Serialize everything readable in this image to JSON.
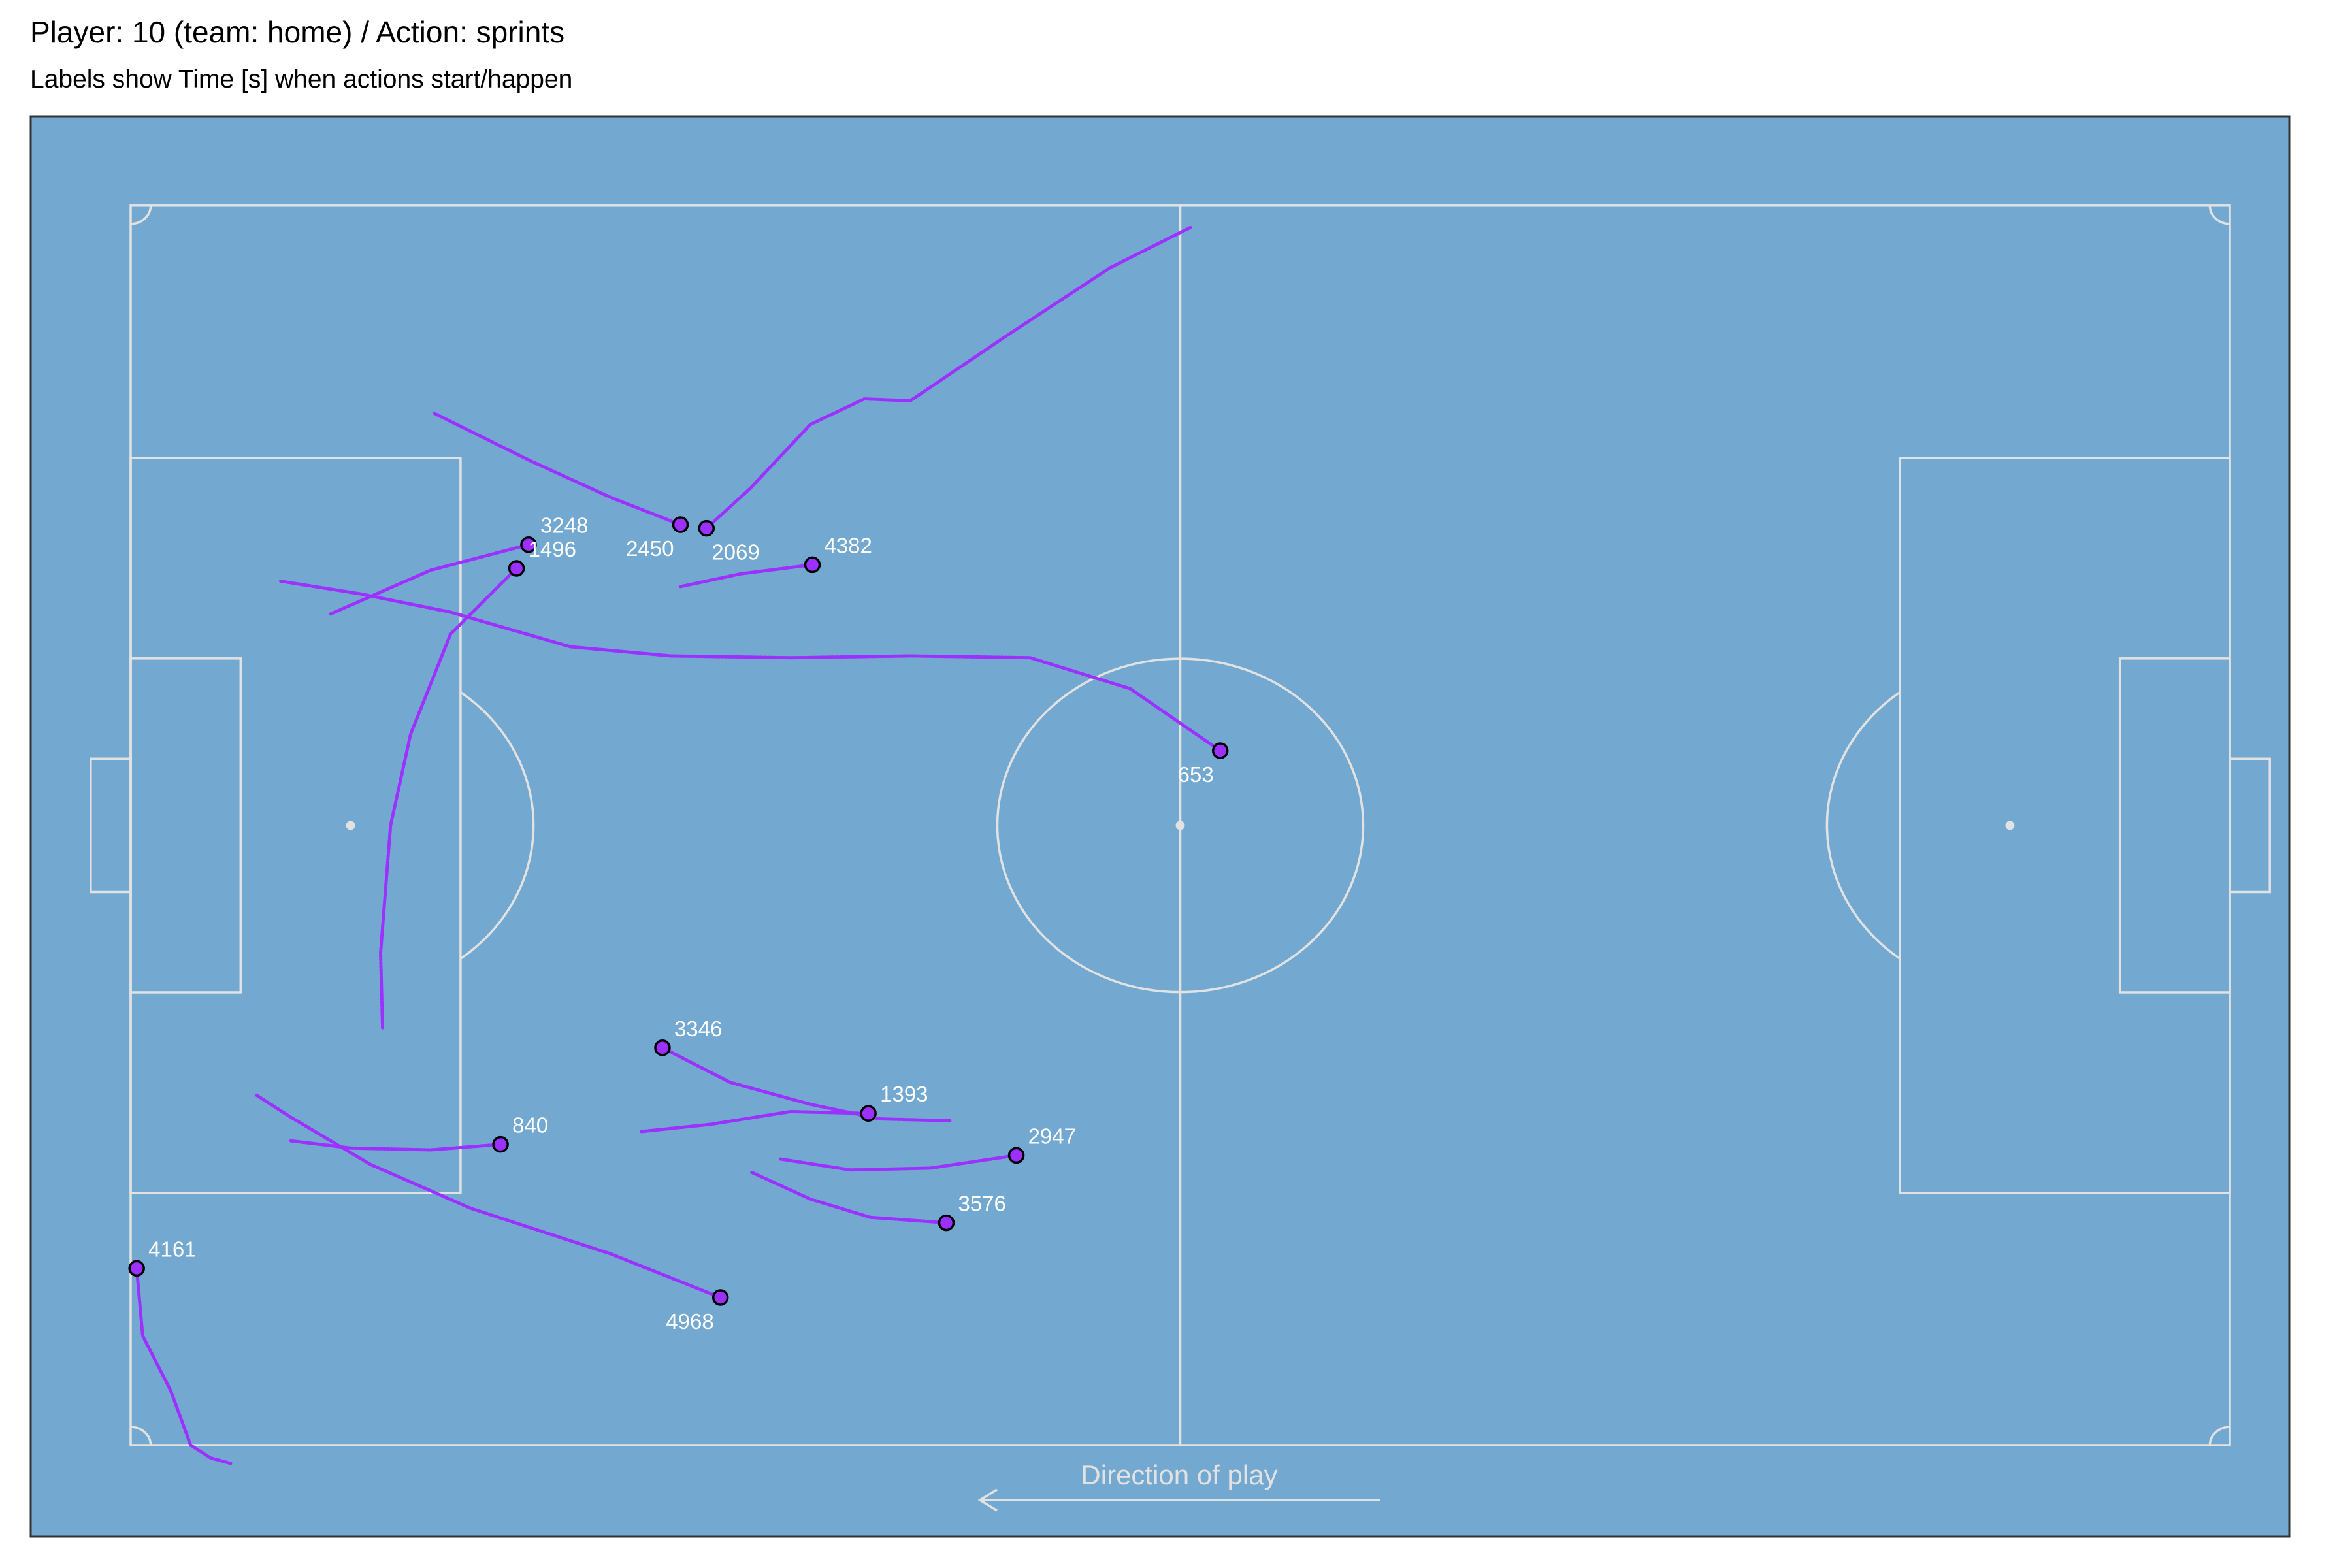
{
  "title": "Player: 10 (team: home) / Action: sprints",
  "subtitle": "Labels show Time [s] when actions start/happen",
  "direction_label": "Direction of play",
  "colors": {
    "panel_background": "#73a9d0",
    "pitch_lines": "#e2e2e2",
    "sprint_path": "#9b30ff",
    "start_point_fill": "#9b30ff",
    "start_point_outline": "#000000",
    "label_text": "#ffffff"
  },
  "chart_data": {
    "type": "scatter",
    "description_type": "pitch sprint map",
    "pitch": {
      "length_m": 105,
      "width_m": 68
    },
    "xlim": [
      -5,
      110
    ],
    "ylim": [
      -5,
      73
    ],
    "grid": false,
    "sprints": [
      {
        "label": "653",
        "start": [
          54.5,
          38.1
        ],
        "path": [
          [
            54.5,
            38.1
          ],
          [
            50,
            41.5
          ],
          [
            45,
            43.2
          ],
          [
            39,
            43.3
          ],
          [
            33,
            43.2
          ],
          [
            27,
            43.3
          ],
          [
            22,
            43.8
          ],
          [
            16,
            45.7
          ],
          [
            11.5,
            46.7
          ],
          [
            7.5,
            47.4
          ]
        ]
      },
      {
        "label": "840",
        "start": [
          18.5,
          16.5
        ],
        "path": [
          [
            18.5,
            16.5
          ],
          [
            15,
            16.2
          ],
          [
            11,
            16.3
          ],
          [
            8,
            16.7
          ]
        ]
      },
      {
        "label": "1393",
        "start": [
          36.9,
          18.2
        ],
        "path": [
          [
            36.9,
            18.2
          ],
          [
            33,
            18.3
          ],
          [
            29,
            17.6
          ],
          [
            25.5,
            17.2
          ]
        ]
      },
      {
        "label": "1496",
        "start": [
          19.3,
          48.1
        ],
        "path": [
          [
            19.3,
            48.1
          ],
          [
            16,
            44.5
          ],
          [
            14,
            39
          ],
          [
            13,
            34
          ],
          [
            12.5,
            27
          ],
          [
            12.6,
            22.9
          ]
        ]
      },
      {
        "label": "2069",
        "start": [
          28.8,
          50.3
        ],
        "path": [
          [
            28.8,
            50.3
          ],
          [
            31,
            52.5
          ],
          [
            34,
            56
          ],
          [
            36.7,
            57.4
          ],
          [
            39,
            57.3
          ],
          [
            44,
            61
          ],
          [
            49,
            64.6
          ],
          [
            53,
            66.8
          ]
        ]
      },
      {
        "label": "2450",
        "start": [
          27.5,
          50.5
        ],
        "path": [
          [
            27.5,
            50.5
          ],
          [
            24,
            52
          ],
          [
            20,
            54
          ],
          [
            15.2,
            56.6
          ]
        ]
      },
      {
        "label": "2947",
        "start": [
          44.3,
          15.9
        ],
        "path": [
          [
            44.3,
            15.9
          ],
          [
            40,
            15.2
          ],
          [
            36,
            15.1
          ],
          [
            32.5,
            15.7
          ]
        ]
      },
      {
        "label": "3248",
        "start": [
          19.9,
          49.4
        ],
        "path": [
          [
            19.9,
            49.4
          ],
          [
            15,
            48
          ],
          [
            10,
            45.6
          ]
        ]
      },
      {
        "label": "3346",
        "start": [
          26.6,
          21.8
        ],
        "path": [
          [
            26.6,
            21.8
          ],
          [
            30,
            19.9
          ],
          [
            34,
            18.7
          ],
          [
            37.5,
            17.9
          ],
          [
            41,
            17.8
          ]
        ]
      },
      {
        "label": "3576",
        "start": [
          40.8,
          12.2
        ],
        "path": [
          [
            40.8,
            12.2
          ],
          [
            37,
            12.5
          ],
          [
            34,
            13.5
          ],
          [
            31,
            15
          ]
        ]
      },
      {
        "label": "4161",
        "start": [
          0.3,
          9.7
        ],
        "path": [
          [
            0.3,
            9.7
          ],
          [
            0.6,
            6
          ],
          [
            2,
            3
          ],
          [
            3,
            0
          ],
          [
            4,
            -0.7
          ],
          [
            5,
            -1
          ]
        ]
      },
      {
        "label": "4382",
        "start": [
          34.1,
          48.3
        ],
        "path": [
          [
            34.1,
            48.3
          ],
          [
            30.5,
            47.8
          ],
          [
            27.5,
            47.1
          ]
        ]
      },
      {
        "label": "4968",
        "start": [
          29.5,
          8.1
        ],
        "path": [
          [
            29.5,
            8.1
          ],
          [
            24,
            10.5
          ],
          [
            17,
            13
          ],
          [
            12,
            15.4
          ],
          [
            8,
            18
          ],
          [
            6.3,
            19.2
          ]
        ]
      }
    ]
  }
}
